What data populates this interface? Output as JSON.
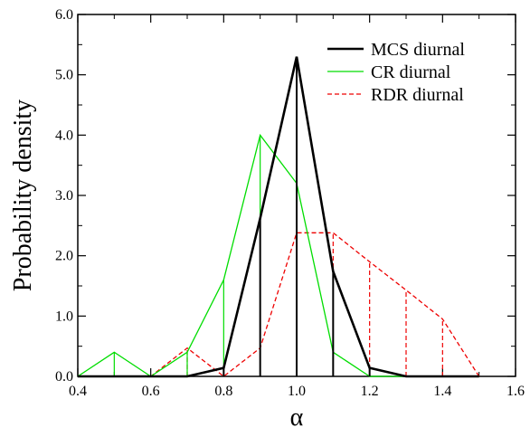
{
  "chart_data": {
    "type": "line",
    "xlabel": "α",
    "ylabel": "Probability density",
    "xlim": [
      0.4,
      1.6
    ],
    "ylim": [
      0.0,
      6.0
    ],
    "x_ticks": [
      "0.4",
      "0.6",
      "0.8",
      "1.0",
      "1.2",
      "1.4",
      "1.6"
    ],
    "y_ticks": [
      "0.0",
      "1.0",
      "2.0",
      "3.0",
      "4.0",
      "5.0",
      "6.0"
    ],
    "x_tick_values": [
      0.4,
      0.6,
      0.8,
      1.0,
      1.2,
      1.4,
      1.6
    ],
    "y_tick_values": [
      0.0,
      1.0,
      2.0,
      3.0,
      4.0,
      5.0,
      6.0
    ],
    "grid": false,
    "legend_position": "top-right",
    "series": [
      {
        "name": "MCS diurnal",
        "color": "#000000",
        "style": "solid",
        "x": [
          0.4,
          0.5,
          0.6,
          0.7,
          0.8,
          0.9,
          1.0,
          1.1,
          1.2,
          1.3,
          1.4,
          1.5
        ],
        "y": [
          0.0,
          0.0,
          0.0,
          0.0,
          0.14,
          2.62,
          5.3,
          1.74,
          0.14,
          0.0,
          0.0,
          0.0
        ]
      },
      {
        "name": "CR diurnal",
        "color": "#00dd00",
        "style": "solid",
        "x": [
          0.4,
          0.5,
          0.6,
          0.7,
          0.8,
          0.9,
          1.0,
          1.1,
          1.2,
          1.3,
          1.4,
          1.5
        ],
        "y": [
          0.0,
          0.4,
          0.0,
          0.4,
          1.6,
          4.0,
          3.2,
          0.4,
          0.0,
          0.0,
          0.0,
          0.0
        ]
      },
      {
        "name": "RDR diurnal",
        "color": "#ee0000",
        "style": "dashed",
        "x": [
          0.4,
          0.5,
          0.6,
          0.7,
          0.8,
          0.9,
          1.0,
          1.1,
          1.2,
          1.3,
          1.4,
          1.5
        ],
        "y": [
          0.0,
          0.0,
          0.0,
          0.47,
          0.0,
          0.47,
          2.38,
          2.38,
          1.9,
          1.43,
          0.95,
          0.0
        ]
      }
    ]
  }
}
